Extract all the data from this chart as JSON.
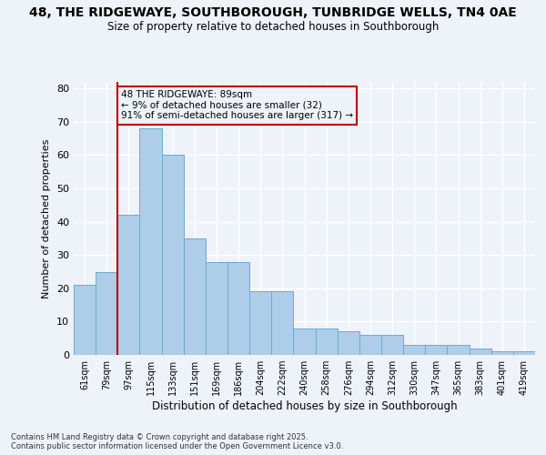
{
  "title_line1": "48, THE RIDGEWAYE, SOUTHBOROUGH, TUNBRIDGE WELLS, TN4 0AE",
  "title_line2": "Size of property relative to detached houses in Southborough",
  "xlabel": "Distribution of detached houses by size in Southborough",
  "ylabel": "Number of detached properties",
  "categories": [
    "61sqm",
    "79sqm",
    "97sqm",
    "115sqm",
    "133sqm",
    "151sqm",
    "169sqm",
    "186sqm",
    "204sqm",
    "222sqm",
    "240sqm",
    "258sqm",
    "276sqm",
    "294sqm",
    "312sqm",
    "330sqm",
    "347sqm",
    "365sqm",
    "383sqm",
    "401sqm",
    "419sqm"
  ],
  "values": [
    21,
    25,
    42,
    68,
    60,
    35,
    28,
    28,
    19,
    19,
    8,
    8,
    7,
    6,
    6,
    3,
    3,
    3,
    2,
    1,
    1
  ],
  "bar_color": "#aecde8",
  "bar_edge_color": "#6aaad4",
  "ref_line_color": "#bb0000",
  "ref_line_xindex": 1.5,
  "annotation_text": "48 THE RIDGEWAYE: 89sqm\n← 9% of detached houses are smaller (32)\n91% of semi-detached houses are larger (317) →",
  "annotation_box_edgecolor": "#bb0000",
  "ylim": [
    0,
    82
  ],
  "yticks": [
    0,
    10,
    20,
    30,
    40,
    50,
    60,
    70,
    80
  ],
  "bg_color": "#eef2f9",
  "grid_color": "#ffffff",
  "footer_line1": "Contains HM Land Registry data © Crown copyright and database right 2025.",
  "footer_line2": "Contains public sector information licensed under the Open Government Licence v3.0."
}
